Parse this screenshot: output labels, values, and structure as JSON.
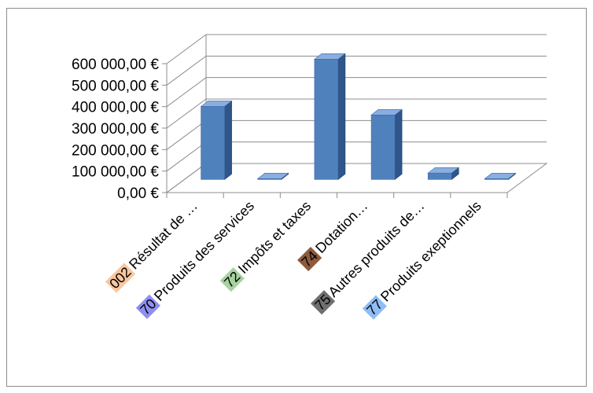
{
  "chart_data": {
    "type": "bar",
    "style": "3d-column",
    "categories": [
      {
        "code": "002",
        "name": "Résultat de …",
        "code_color": "#f9c79f"
      },
      {
        "code": "70",
        "name": "Produits des services",
        "code_color": "#8f8ff0"
      },
      {
        "code": "72",
        "name": "Impôts et taxes",
        "code_color": "#a6d1a0"
      },
      {
        "code": "74",
        "name": "Dotation…",
        "code_color": "#8c5a3c"
      },
      {
        "code": "75",
        "name": "Autres produits de…",
        "code_color": "#6f6f6f"
      },
      {
        "code": "77",
        "name": "Produits exeptionnels",
        "code_color": "#8fbdf5"
      }
    ],
    "values": [
      340000,
      2000,
      560000,
      300000,
      30000,
      2000
    ],
    "ylim": [
      0,
      600000
    ],
    "yticks": [
      0,
      100000,
      200000,
      300000,
      400000,
      500000,
      600000
    ],
    "ytick_labels": [
      "0,00 €",
      "100 000,00 €",
      "200 000,00 €",
      "300 000,00 €",
      "400 000,00 €",
      "500 000,00 €",
      "600 000,00 €"
    ],
    "grid": true,
    "legend": "none",
    "title": "",
    "xlabel": "",
    "ylabel": "",
    "colors": {
      "bar_front": "#4f81bd",
      "bar_side": "#2f5589",
      "bar_top": "#8aaee0",
      "grid": "#8c8c8c"
    }
  }
}
